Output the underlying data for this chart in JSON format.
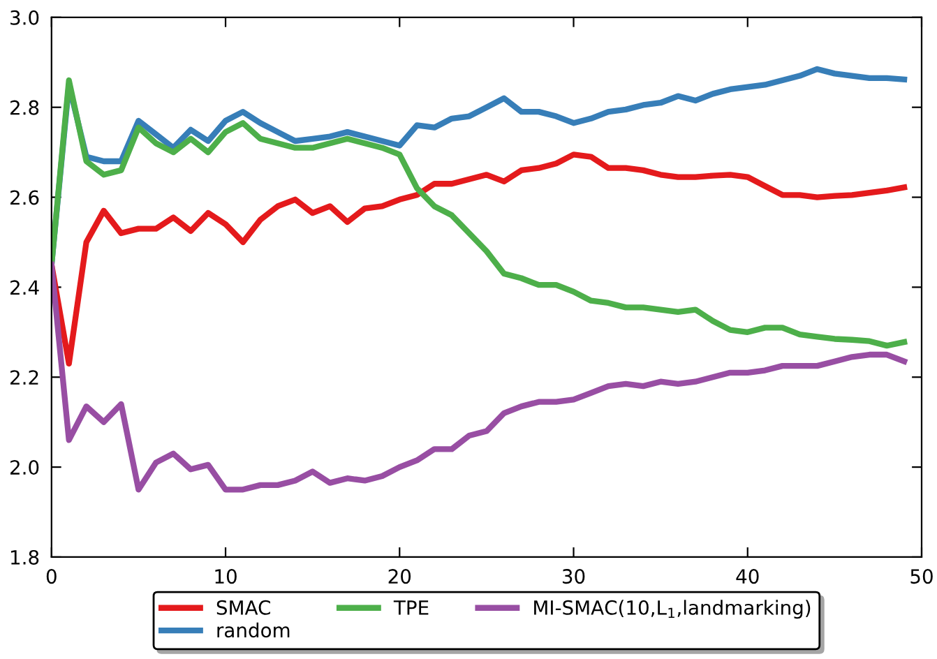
{
  "chart_data": {
    "type": "line",
    "x": [
      0,
      1,
      2,
      3,
      4,
      5,
      6,
      7,
      8,
      9,
      10,
      11,
      12,
      13,
      14,
      15,
      16,
      17,
      18,
      19,
      20,
      21,
      22,
      23,
      24,
      25,
      26,
      27,
      28,
      29,
      30,
      31,
      32,
      33,
      34,
      35,
      36,
      37,
      38,
      39,
      40,
      41,
      42,
      43,
      44,
      45,
      46,
      47,
      48,
      49
    ],
    "series": [
      {
        "name": "SMAC",
        "color": "#e41a1c",
        "values": [
          2.45,
          2.23,
          2.5,
          2.57,
          2.52,
          2.53,
          2.53,
          2.555,
          2.525,
          2.565,
          2.54,
          2.5,
          2.55,
          2.58,
          2.595,
          2.565,
          2.58,
          2.545,
          2.575,
          2.58,
          2.595,
          2.605,
          2.63,
          2.63,
          2.64,
          2.65,
          2.635,
          2.66,
          2.665,
          2.675,
          2.695,
          2.69,
          2.665,
          2.665,
          2.66,
          2.65,
          2.645,
          2.645,
          2.648,
          2.65,
          2.645,
          2.625,
          2.605,
          2.605,
          2.6,
          2.603,
          2.605,
          2.61,
          2.615,
          2.622
        ]
      },
      {
        "name": "random",
        "color": "#377eb8",
        "values": [
          2.45,
          2.85,
          2.69,
          2.68,
          2.68,
          2.77,
          2.74,
          2.71,
          2.75,
          2.725,
          2.77,
          2.79,
          2.765,
          2.745,
          2.725,
          2.73,
          2.735,
          2.745,
          2.735,
          2.725,
          2.715,
          2.76,
          2.755,
          2.775,
          2.78,
          2.8,
          2.82,
          2.79,
          2.79,
          2.78,
          2.765,
          2.775,
          2.79,
          2.795,
          2.805,
          2.81,
          2.825,
          2.815,
          2.83,
          2.84,
          2.845,
          2.85,
          2.86,
          2.87,
          2.885,
          2.875,
          2.87,
          2.865,
          2.865,
          2.862
        ]
      },
      {
        "name": "TPE",
        "color": "#4daf4a",
        "values": [
          2.45,
          2.86,
          2.68,
          2.65,
          2.66,
          2.755,
          2.72,
          2.7,
          2.73,
          2.7,
          2.745,
          2.765,
          2.73,
          2.72,
          2.71,
          2.71,
          2.72,
          2.73,
          2.72,
          2.71,
          2.695,
          2.62,
          2.58,
          2.56,
          2.52,
          2.48,
          2.43,
          2.42,
          2.405,
          2.405,
          2.39,
          2.37,
          2.365,
          2.355,
          2.355,
          2.35,
          2.345,
          2.35,
          2.325,
          2.305,
          2.3,
          2.31,
          2.31,
          2.295,
          2.29,
          2.285,
          2.283,
          2.28,
          2.27,
          2.278
        ]
      },
      {
        "name": "MI-SMAC(10,L$_{1}$,landmarking)",
        "color": "#984ea3",
        "values": [
          2.45,
          2.06,
          2.135,
          2.1,
          2.14,
          1.95,
          2.01,
          2.03,
          1.995,
          2.005,
          1.95,
          1.95,
          1.96,
          1.96,
          1.97,
          1.99,
          1.965,
          1.975,
          1.97,
          1.98,
          2.0,
          2.015,
          2.04,
          2.04,
          2.07,
          2.08,
          2.12,
          2.135,
          2.145,
          2.145,
          2.15,
          2.165,
          2.18,
          2.185,
          2.18,
          2.19,
          2.185,
          2.19,
          2.2,
          2.21,
          2.21,
          2.215,
          2.225,
          2.225,
          2.225,
          2.235,
          2.245,
          2.25,
          2.25,
          2.235
        ]
      }
    ],
    "xlim": [
      0,
      50
    ],
    "xticks": [
      0,
      10,
      20,
      30,
      40,
      50
    ],
    "ylim": [
      1.8,
      3.0
    ],
    "yticks": [
      {
        "value": 1.8,
        "label": "1.8"
      },
      {
        "value": 2.0,
        "label": "2.0"
      },
      {
        "value": 2.2,
        "label": "2.2"
      },
      {
        "value": 2.4,
        "label": "2.4"
      },
      {
        "value": 2.6,
        "label": "2.6"
      },
      {
        "value": 2.8,
        "label": "2.8"
      },
      {
        "value": 3.0,
        "label": "3.0"
      }
    ],
    "legend": "bottom",
    "grid": false,
    "line_style": "solid",
    "marker": "none"
  }
}
